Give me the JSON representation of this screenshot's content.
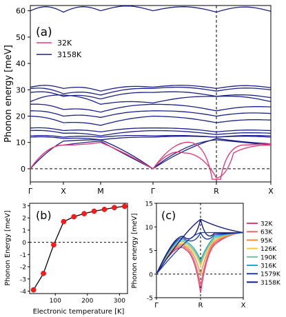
{
  "chart_data": [
    {
      "type": "line",
      "panel": "(a)",
      "ylabel": "Phonon energy [meV]",
      "ylim": [
        -5,
        62
      ],
      "yticks": [
        0,
        10,
        20,
        30,
        40,
        50,
        60
      ],
      "xticks": [
        "Γ",
        "X",
        "M",
        "Γ",
        "R",
        "X"
      ],
      "legend": {
        "placement": "top-left",
        "entries": [
          "32K",
          "3158K"
        ]
      },
      "series": [
        {
          "name": "32K",
          "color": "#e23c7a",
          "description_points": {
            "segment_X_M_min": 9.0,
            "Gamma_to_R_dip_min": -4.0
          }
        },
        {
          "name": "3158K",
          "color": "#1a1f8c"
        }
      ],
      "flat_band_values": [
        0,
        12,
        15,
        22,
        25,
        27,
        30,
        31,
        60
      ],
      "vline_at": "R",
      "hline_at": 0
    },
    {
      "type": "scatter",
      "panel": "(b)",
      "xlabel": "Electronic temperature [K]",
      "ylabel": "Phonon Energy [meV]",
      "xlim": [
        20,
        325
      ],
      "ylim": [
        -4.2,
        3.2
      ],
      "xticks": [
        100,
        200,
        300
      ],
      "yticks": [
        -4,
        -3,
        -2,
        -1,
        0,
        1,
        2,
        3
      ],
      "x": [
        32,
        63,
        95,
        126,
        158,
        190,
        221,
        253,
        284,
        316
      ],
      "y": [
        -3.9,
        -2.55,
        -0.2,
        1.7,
        2.1,
        2.35,
        2.55,
        2.7,
        2.85,
        2.95
      ],
      "hline_at": 0
    },
    {
      "type": "line",
      "panel": "(c)",
      "ylabel": "Phonon energy [meV]",
      "ylim": [
        -5,
        15
      ],
      "yticks": [
        -5,
        0,
        5,
        10,
        15
      ],
      "xticks": [
        "Γ",
        "R",
        "X"
      ],
      "legend": {
        "placement": "right",
        "entries": [
          "32K",
          "63K",
          "95K",
          "126K",
          "190K",
          "316K",
          "1579K",
          "3158K"
        ]
      },
      "series": [
        {
          "name": "32K",
          "color": "#e23c7a",
          "R_value": -4.0
        },
        {
          "name": "63K",
          "color": "#f06a6a",
          "R_value": -2.5
        },
        {
          "name": "95K",
          "color": "#f58d38",
          "R_value": -0.2
        },
        {
          "name": "126K",
          "color": "#f5c842",
          "R_value": 1.7
        },
        {
          "name": "190K",
          "color": "#6cc59c",
          "R_value": 2.3
        },
        {
          "name": "316K",
          "color": "#2ea7cf",
          "R_value": 2.9
        },
        {
          "name": "1579K",
          "color": "#1e3fa8",
          "R_value": 8.8
        },
        {
          "name": "3158K",
          "color": "#141a80",
          "R_value": 11.6
        }
      ],
      "vline_at": "R",
      "hline_at": 0
    }
  ]
}
